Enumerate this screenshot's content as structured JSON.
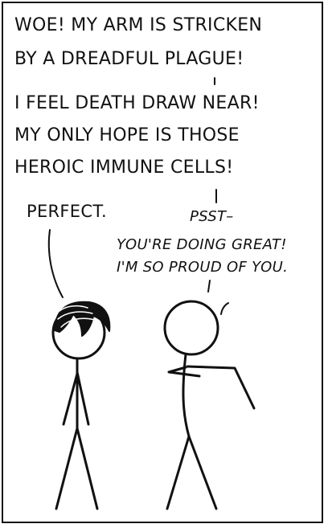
{
  "speech": {
    "top": {
      "line1": "WOE! MY ARM IS STRICKEN",
      "line2": "BY A DREADFUL PLAGUE!",
      "line3": "I FEEL DEATH DRAW NEAR!",
      "line4": "MY ONLY HOPE IS THOSE",
      "line5": "HEROIC IMMUNE CELLS!"
    },
    "left": "PERFECT.",
    "right_intro": "PSST–",
    "right_line1": "YOU'RE DOING GREAT!",
    "right_line2": "I'M SO PROUD OF YOU."
  },
  "colors": {
    "ink": "#111111",
    "paper": "#ffffff"
  }
}
